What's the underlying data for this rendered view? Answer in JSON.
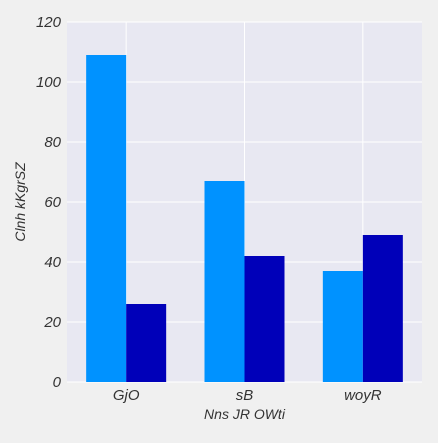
{
  "chart_data": {
    "type": "bar",
    "title": "",
    "xlabel": "Nns JR OWti",
    "ylabel": "Clnh kKgrSZ",
    "categories": [
      "GjO",
      "sB",
      "woyR"
    ],
    "series": [
      {
        "values": [
          109,
          67,
          37
        ],
        "color": "#0092ff"
      },
      {
        "values": [
          26,
          42,
          49
        ],
        "color": "#0000b9"
      }
    ],
    "ylim": [
      0,
      120
    ],
    "yticks": [
      0,
      20,
      40,
      60,
      80,
      100,
      120
    ],
    "grid": true,
    "legend": "none",
    "plot_background": "#e8e8f2",
    "page_background": "#f0f0f0"
  }
}
